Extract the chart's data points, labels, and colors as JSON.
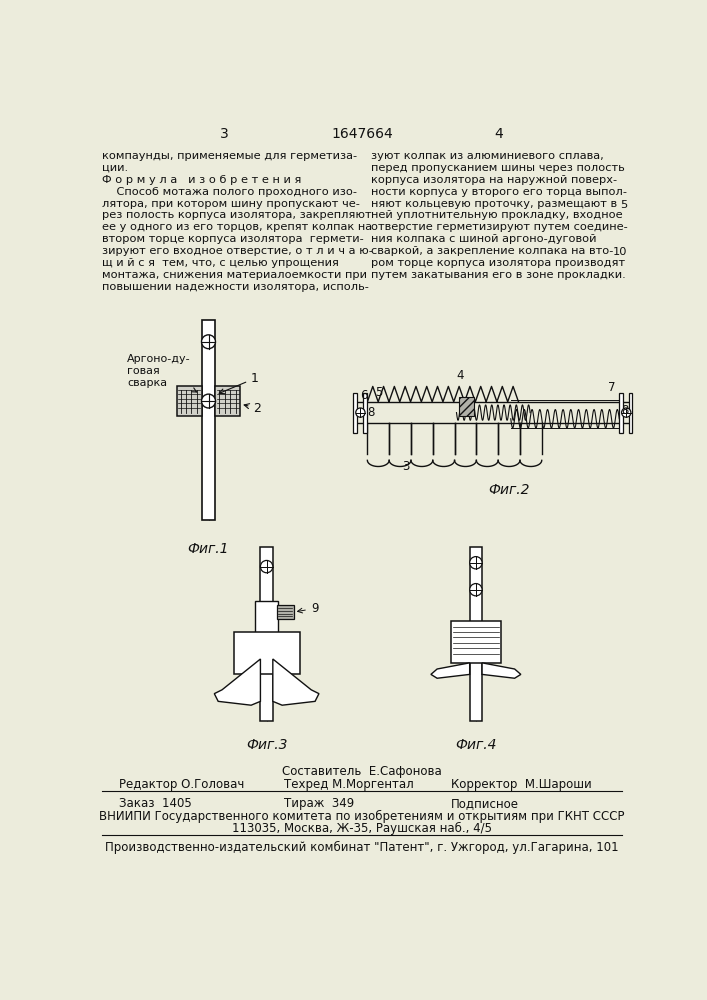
{
  "page_color": "#ececdc",
  "text_color": "#111111",
  "header_page_left": "3",
  "header_center": "1647664",
  "header_page_right": "4",
  "left_col_text": [
    "компаунды, применяемые для герметиза-",
    "ции.",
    "Ф о р м у л а   и з о б р е т е н и я",
    "    Способ мотажа полого проходного изо-",
    "лятора, при котором шину пропускают че-",
    "рез полость корпуса изолятора, закрепляют",
    "ее у одного из его торцов, крепят колпак на",
    "втором торце корпуса изолятора  гермети-",
    "зируют его входное отверстие, о т л и ч а ю-",
    "щ и й с я  тем, что, с целью упрощения",
    "монтажа, снижения материалоемкости при",
    "повышении надежности изолятора, исполь-"
  ],
  "right_col_text": [
    "зуют колпак из алюминиевого сплава,",
    "перед пропусканием шины через полость",
    "корпуса изолятора на наружной поверх-",
    "ности корпуса у второго его торца выпол-",
    "няют кольцевую проточку, размещают в",
    "ней уплотнительную прокладку, входное",
    "отверстие герметизируют путем соедине-",
    "ния колпака с шиной аргоно-дуговой",
    "сваркой, а закрепление колпака на вто-",
    "ром торце корпуса изолятора производят",
    "путем закатывания его в зоне прокладки."
  ],
  "right_col_line_numbers": [
    null,
    null,
    null,
    null,
    "5",
    null,
    null,
    null,
    "10",
    null,
    null
  ],
  "fig1_label": "Фиг.1",
  "fig2_label": "Фиг.2",
  "fig3_label": "Фиг.3",
  "fig4_label": "Фиг.4",
  "footer_sestavitel": "Составитель  Е.Сафонова",
  "footer_editor": "Редактор О.Головач",
  "footer_techred": "Техред М.Моргентал",
  "footer_corrector": "Корректор  М.Шароши",
  "footer_order": "Заказ  1405",
  "footer_circulation": "Тираж  349",
  "footer_subscription": "Подписное",
  "footer_vniipи": "ВНИИПИ Государственного комитета по изобретениям и открытиям при ГКНТ СССР",
  "footer_address": "113035, Москва, Ж-35, Раушская наб., 4/5",
  "footer_publisher": "Производственно-издательский комбинат \"Патент\", г. Ужгород, ул.Гагарина, 101"
}
